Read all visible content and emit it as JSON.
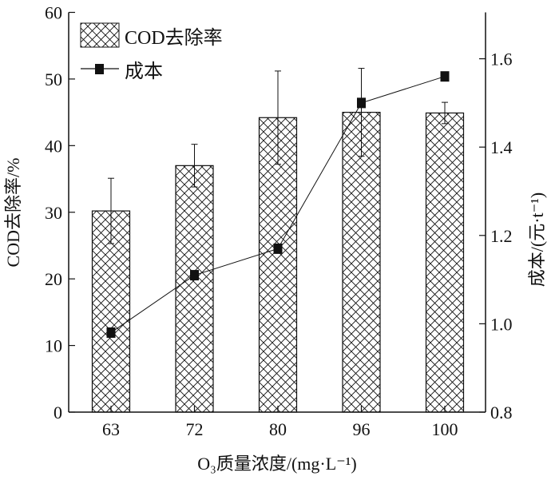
{
  "chart_data": {
    "type": "bar",
    "categories": [
      "63",
      "72",
      "80",
      "96",
      "100"
    ],
    "series": [
      {
        "name": "COD去除率",
        "kind": "bar",
        "axis": "left",
        "values": [
          30.2,
          37.0,
          44.2,
          45.0,
          44.9
        ],
        "errors": [
          4.9,
          3.2,
          7.0,
          6.6,
          1.6
        ]
      },
      {
        "name": "成本",
        "kind": "line",
        "axis": "right",
        "values": [
          0.98,
          1.11,
          1.17,
          1.5,
          1.56
        ]
      }
    ],
    "xlabel": "O₃质量浓度/(mg·L⁻¹)",
    "ylabel": "COD去除率/%",
    "y2label": "成本/(元·t⁻¹)",
    "ylim": [
      0,
      60
    ],
    "y2lim": [
      0.8,
      1.705
    ],
    "yticks": [
      "0",
      "10",
      "20",
      "30",
      "40",
      "50",
      "60"
    ],
    "y2ticks": [
      "0.8",
      "1.0",
      "1.2",
      "1.4",
      "1.6"
    ],
    "legend": {
      "placement": "top-left",
      "entries": [
        "COD去除率",
        "成本"
      ]
    },
    "grid": false,
    "colors": {
      "line": "#111111",
      "bar_edge": "#111111",
      "hatch": "#111111"
    }
  }
}
